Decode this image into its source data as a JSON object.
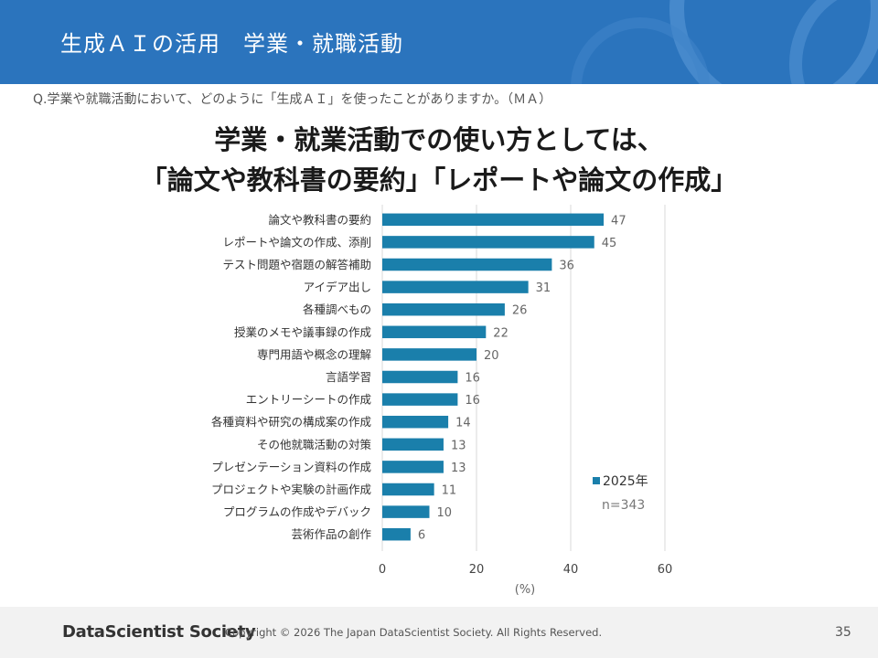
{
  "header": {
    "title": "生成ＡＩの活用　学業・就職活動"
  },
  "question": "Q.学業や就職活動において、どのように「生成ＡＩ」を使ったことがありますか。（ＭＡ）",
  "headline": {
    "line1": "学業・就業活動での使い方としては、",
    "line2": "「論文や教科書の要約」「レポートや論文の作成」"
  },
  "chart_data": {
    "type": "bar",
    "orientation": "horizontal",
    "categories": [
      "論文や教科書の要約",
      "レポートや論文の作成、添削",
      "テスト問題や宿題の解答補助",
      "アイデア出し",
      "各種調べもの",
      "授業のメモや議事録の作成",
      "専門用語や概念の理解",
      "言語学習",
      "エントリーシートの作成",
      "各種資料や研究の構成案の作成",
      "その他就職活動の対策",
      "プレゼンテーション資料の作成",
      "プロジェクトや実験の計画作成",
      "プログラムの作成やデバック",
      "芸術作品の創作"
    ],
    "series": [
      {
        "name": "2025年",
        "values": [
          47,
          45,
          36,
          31,
          26,
          22,
          20,
          16,
          16,
          14,
          13,
          13,
          11,
          10,
          6
        ]
      }
    ],
    "xlim": [
      0,
      60
    ],
    "xticks": [
      "0",
      "20",
      "40",
      "60"
    ],
    "xlabel": "(%)",
    "grid": true,
    "legend_position": "bottom-right",
    "note": "n=343",
    "color": "#1a7fab"
  },
  "footer": {
    "logo": "DataScientist Society",
    "copyright": "Copyright © 2026  The Japan DataScientist Society. All Rights Reserved.",
    "page": "35"
  }
}
